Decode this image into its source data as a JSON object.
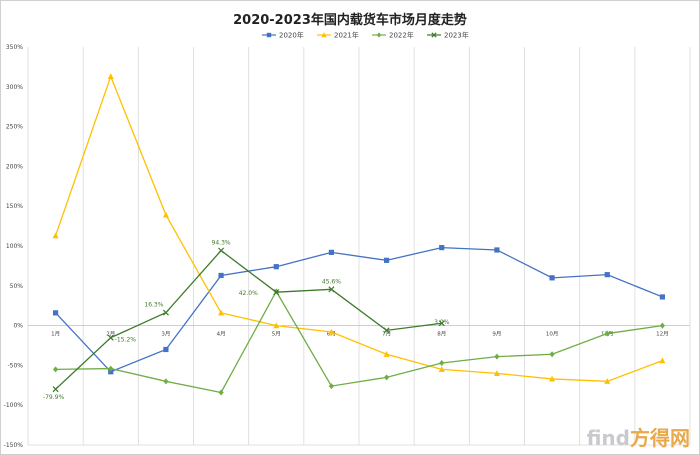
{
  "chart_data": {
    "type": "line",
    "title": "2020-2023年国内载货车市场月度走势",
    "categories": [
      "1月",
      "2月",
      "3月",
      "4月",
      "5月",
      "6月",
      "7月",
      "8月",
      "9月",
      "10月",
      "11月",
      "12月"
    ],
    "ylim": [
      -150,
      350
    ],
    "y_ticks": [
      "350%",
      "300%",
      "250%",
      "200%",
      "150%",
      "100%",
      "50%",
      "0%",
      "-50%",
      "-100%",
      "-150%"
    ],
    "y_tick_values": [
      350,
      300,
      250,
      200,
      150,
      100,
      50,
      0,
      -50,
      -100,
      -150
    ],
    "grid": "vertical",
    "legend_position": "top",
    "series": [
      {
        "name": "2020年",
        "color": "#4472c4",
        "marker": "square",
        "values": [
          16,
          -58,
          -30,
          63,
          74,
          92,
          82,
          98,
          95,
          60,
          64,
          36
        ]
      },
      {
        "name": "2021年",
        "color": "#ffc000",
        "marker": "triangle",
        "values": [
          113,
          313,
          139,
          16,
          0,
          -8,
          -36,
          -55,
          -60,
          -67,
          -70,
          -44
        ]
      },
      {
        "name": "2022年",
        "color": "#70ad47",
        "marker": "diamond",
        "values": [
          -55,
          -54,
          -70,
          -84,
          43,
          -76,
          -65,
          -47,
          -39,
          -36,
          -10,
          0
        ]
      },
      {
        "name": "2023年",
        "color": "#3d7a2a",
        "marker": "x",
        "values": [
          -79.9,
          -15.2,
          16.3,
          94.3,
          42.0,
          45.6,
          -6,
          3,
          null,
          null,
          null,
          null
        ]
      }
    ],
    "data_labels": [
      {
        "series": "2023年",
        "index": 0,
        "text": "-79.9%"
      },
      {
        "series": "2023年",
        "index": 1,
        "text": "-15.2%"
      },
      {
        "series": "2023年",
        "index": 2,
        "text": "16.3%"
      },
      {
        "series": "2023年",
        "index": 3,
        "text": "94.3%"
      },
      {
        "series": "2023年",
        "index": 4,
        "text": "42.0%"
      },
      {
        "series": "2023年",
        "index": 5,
        "text": "45.6%"
      },
      {
        "series": "2023年",
        "index": 6,
        "text": ""
      },
      {
        "series": "2023年",
        "index": 7,
        "text": "3.0%"
      }
    ]
  },
  "watermark": {
    "latin": "find",
    "cjk": "方得网"
  }
}
